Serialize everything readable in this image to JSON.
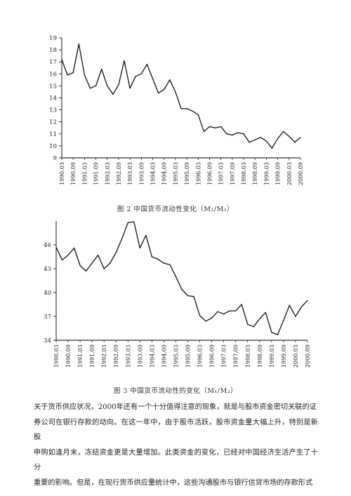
{
  "figures": [
    {
      "caption": "图 2  中国货币流动性变化（M₁/M₂）",
      "chart_data": {
        "type": "line",
        "x": [
          "1990.03",
          "1990.06",
          "1990.09",
          "1990.12",
          "1991.03",
          "1991.06",
          "1991.09",
          "1991.12",
          "1992.03",
          "1992.06",
          "1992.09",
          "1992.12",
          "1993.03",
          "1993.06",
          "1993.09",
          "1993.12",
          "1994.03",
          "1994.06",
          "1994.09",
          "1994.12",
          "1995.03",
          "1995.06",
          "1995.09",
          "1995.12",
          "1996.03",
          "1996.06",
          "1996.09",
          "1996.12",
          "1997.03",
          "1997.06",
          "1997.09",
          "1997.12",
          "1998.03",
          "1998.06",
          "1998.09",
          "1998.12",
          "1999.03",
          "1999.06",
          "1999.09",
          "1999.12",
          "2000.03",
          "2000.06",
          "2000.09"
        ],
        "series": [
          {
            "values": [
              17.2,
              15.9,
              16.1,
              18.5,
              15.9,
              14.8,
              15.0,
              16.4,
              15.0,
              14.3,
              15.1,
              17.1,
              14.8,
              15.8,
              16.0,
              16.8,
              15.6,
              14.4,
              14.7,
              15.5,
              14.5,
              13.1,
              13.1,
              12.9,
              12.6,
              11.2,
              11.6,
              11.5,
              11.6,
              11.0,
              10.9,
              11.1,
              11.0,
              10.3,
              10.5,
              10.7,
              10.4,
              9.8,
              10.6,
              11.2,
              10.8,
              10.3,
              10.7
            ]
          }
        ],
        "xticks": [
          "1990.03",
          "1990.09",
          "1991.03",
          "1991.09",
          "1992.03",
          "1992.09",
          "1993.03",
          "1993.09",
          "1994.03",
          "1994.09",
          "1995.03",
          "1995.09",
          "1996.03",
          "1996.09",
          "1997.03",
          "1997.09",
          "1998.03",
          "1998.09",
          "1999.03",
          "1999.09",
          "2000.03",
          "2000.09"
        ],
        "yticks": [
          "9",
          "10",
          "11",
          "12",
          "13",
          "14",
          "15",
          "16",
          "17",
          "18",
          "19"
        ],
        "ylim": [
          9,
          19
        ],
        "grid": false,
        "color": "#111111"
      }
    },
    {
      "caption": "图 3  中国货币流动性的变化（M₁/M₂）",
      "chart_data": {
        "type": "line",
        "x": [
          "1990.03",
          "1990.06",
          "1990.09",
          "1990.12",
          "1991.03",
          "1991.06",
          "1991.09",
          "1991.12",
          "1992.03",
          "1992.06",
          "1992.09",
          "1992.12",
          "1993.03",
          "1993.06",
          "1993.09",
          "1993.12",
          "1994.03",
          "1994.06",
          "1994.09",
          "1994.12",
          "1995.03",
          "1995.06",
          "1995.09",
          "1995.12",
          "1996.03",
          "1996.06",
          "1996.09",
          "1996.12",
          "1997.03",
          "1997.06",
          "1997.09",
          "1997.12",
          "1998.03",
          "1998.06",
          "1998.09",
          "1998.12",
          "1999.03",
          "1999.06",
          "1999.09",
          "1999.12",
          "2000.03",
          "2000.06",
          "2000.09"
        ],
        "series": [
          {
            "values": [
              45.7,
              44.1,
              44.7,
              45.6,
              43.4,
              42.7,
              43.7,
              44.7,
              43.0,
              43.7,
              45.0,
              46.8,
              48.8,
              48.9,
              45.6,
              47.2,
              44.5,
              44.2,
              43.7,
              43.5,
              42.0,
              40.4,
              39.6,
              39.5,
              37.1,
              36.4,
              36.8,
              37.6,
              37.3,
              37.7,
              37.7,
              38.5,
              36.0,
              35.7,
              36.7,
              37.5,
              35.0,
              34.7,
              36.5,
              38.4,
              37.0,
              38.2,
              39.0
            ]
          }
        ],
        "xticks": [
          "1990.03",
          "1990.09",
          "1991.03",
          "1991.09",
          "1992.03",
          "1992.09",
          "1993.03",
          "1993.09",
          "1994.03",
          "1994.09",
          "1995.03",
          "1995.09",
          "1996.03",
          "1996.09",
          "1997.03",
          "1997.09",
          "1998.03",
          "1998.09",
          "1999.03",
          "1999.09",
          "2000.03",
          "2000.09"
        ],
        "yticks": [
          "34",
          "37",
          "40",
          "43",
          "46"
        ],
        "ylim": [
          34,
          49
        ],
        "grid": false,
        "color": "#111111"
      }
    }
  ],
  "body_text": [
    "关于货币供应状况，2000年还有一个十分值得注意的现象，就是与股市资金密切关联的证",
    "券公司在银行存款的动向。在这一年中，由于股市活跃，股市资金量大幅上升，特别是新股",
    "申购如逢月末，冻结资金更是大量增加。此类资金的变化，已经对中国经济生活产生了十分",
    "重要的影响。但是，在现行货币供应量统计中，这些沟通股市与银行信贷市场的存款形式"
  ]
}
